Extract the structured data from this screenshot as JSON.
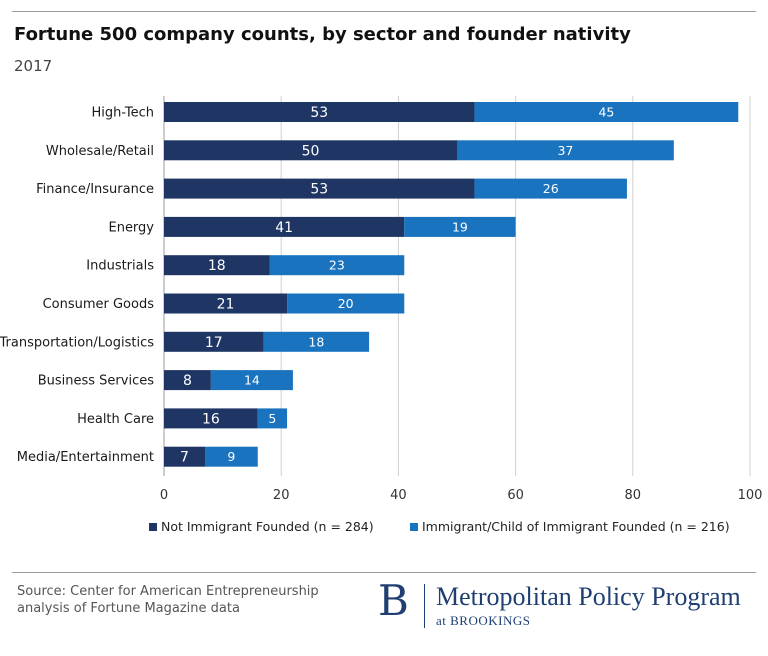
{
  "header": {
    "title": "Fortune 500 company counts, by sector and founder nativity",
    "subtitle": "2017"
  },
  "chart_data": {
    "type": "bar",
    "orientation": "horizontal",
    "stacked": true,
    "title": "Fortune 500 company counts, by sector and founder nativity",
    "subtitle": "2017",
    "categories": [
      "High-Tech",
      "Wholesale/Retail",
      "Finance/Insurance",
      "Energy",
      "Industrials",
      "Consumer Goods",
      "Transportation/Logistics",
      "Business Services",
      "Health Care",
      "Media/Entertainment"
    ],
    "series": [
      {
        "name": "Not Immigrant Founded (n = 284)",
        "color": "#1f3564",
        "label_color": "#ffffff",
        "values": [
          53,
          50,
          53,
          41,
          18,
          21,
          17,
          8,
          16,
          7
        ]
      },
      {
        "name": "Immigrant/Child of Immigrant Founded (n = 216)",
        "color": "#1a73bf",
        "label_color": "#ffffff",
        "values": [
          45,
          37,
          26,
          19,
          23,
          20,
          18,
          14,
          5,
          9
        ]
      }
    ],
    "xlim": [
      0,
      100
    ],
    "xticks": [
      0,
      20,
      40,
      60,
      80,
      100
    ],
    "xlabel": "",
    "ylabel": "",
    "grid": true,
    "legend_position": "bottom"
  },
  "footer": {
    "source_line1": "Source: Center for American Entrepreneurship",
    "source_line2": "analysis of Fortune Magazine data",
    "logo_letter": "B",
    "program_name": "Metropolitan Policy Program",
    "program_sub": "at BROOKINGS"
  }
}
